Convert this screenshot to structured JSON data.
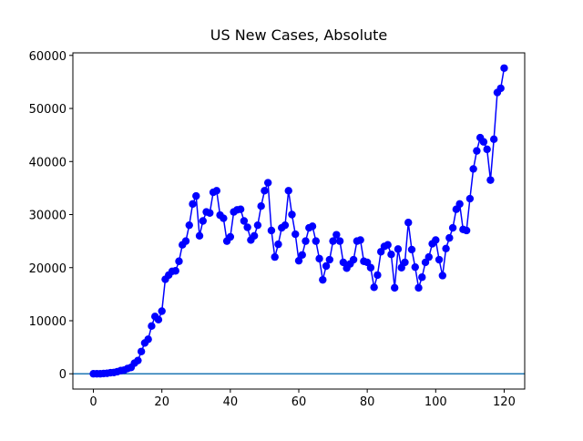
{
  "chart_data": {
    "type": "line",
    "title": "US New Cases, Absolute",
    "x": [
      0,
      1,
      2,
      3,
      4,
      5,
      6,
      7,
      8,
      9,
      10,
      11,
      12,
      13,
      14,
      15,
      16,
      17,
      18,
      19,
      20,
      21,
      22,
      23,
      24,
      25,
      26,
      27,
      28,
      29,
      30,
      31,
      32,
      33,
      34,
      35,
      36,
      37,
      38,
      39,
      40,
      41,
      42,
      43,
      44,
      45,
      46,
      47,
      48,
      49,
      50,
      51,
      52,
      53,
      54,
      55,
      56,
      57,
      58,
      59,
      60,
      61,
      62,
      63,
      64,
      65,
      66,
      67,
      68,
      69,
      70,
      71,
      72,
      73,
      74,
      75,
      76,
      77,
      78,
      79,
      80,
      81,
      82,
      83,
      84,
      85,
      86,
      87,
      88,
      89,
      90,
      91,
      92,
      93,
      94,
      95,
      96,
      97,
      98,
      99,
      100,
      101,
      102,
      103,
      104,
      105,
      106,
      107,
      108,
      109,
      110,
      111,
      112,
      113,
      114,
      115,
      116,
      117,
      118,
      119,
      120
    ],
    "series": [
      {
        "name": "new cases",
        "color": "#0000ff",
        "values": [
          0,
          0,
          0,
          50,
          100,
          200,
          250,
          400,
          600,
          700,
          1000,
          1200,
          2000,
          2500,
          4200,
          5800,
          6500,
          9000,
          10800,
          10200,
          11800,
          17800,
          18600,
          19300,
          19400,
          21200,
          24300,
          25000,
          28000,
          32000,
          33500,
          26000,
          28800,
          30500,
          30300,
          34200,
          34500,
          29900,
          29300,
          25000,
          25800,
          30500,
          30900,
          31000,
          28800,
          27600,
          25200,
          26000,
          28000,
          31600,
          34500,
          36000,
          27000,
          22000,
          24400,
          27500,
          28000,
          34500,
          30000,
          26300,
          21300,
          22400,
          25000,
          27500,
          27800,
          25000,
          21700,
          17700,
          20300,
          21500,
          25000,
          26200,
          25000,
          21000,
          19900,
          20700,
          21500,
          25000,
          25200,
          21200,
          21000,
          20000,
          16300,
          18600,
          23000,
          24000,
          24300,
          22500,
          16200,
          23500,
          20000,
          21000,
          28500,
          23400,
          20100,
          16200,
          18200,
          21000,
          22000,
          24500,
          25200,
          21500,
          18500,
          23600,
          25600,
          27500,
          31000,
          32000,
          27200,
          27000,
          33000,
          38600,
          42000,
          44500,
          43700,
          42300,
          36500,
          44200,
          53000,
          53800,
          57600
        ]
      }
    ],
    "hlines": [
      {
        "y": 0,
        "color": "#1f77b4"
      }
    ],
    "xlim": [
      -6,
      126
    ],
    "xticks": [
      0,
      20,
      40,
      60,
      80,
      100,
      120
    ],
    "ylim": [
      -2880,
      60480
    ],
    "yticks": [
      0,
      10000,
      20000,
      30000,
      40000,
      50000,
      60000
    ]
  }
}
